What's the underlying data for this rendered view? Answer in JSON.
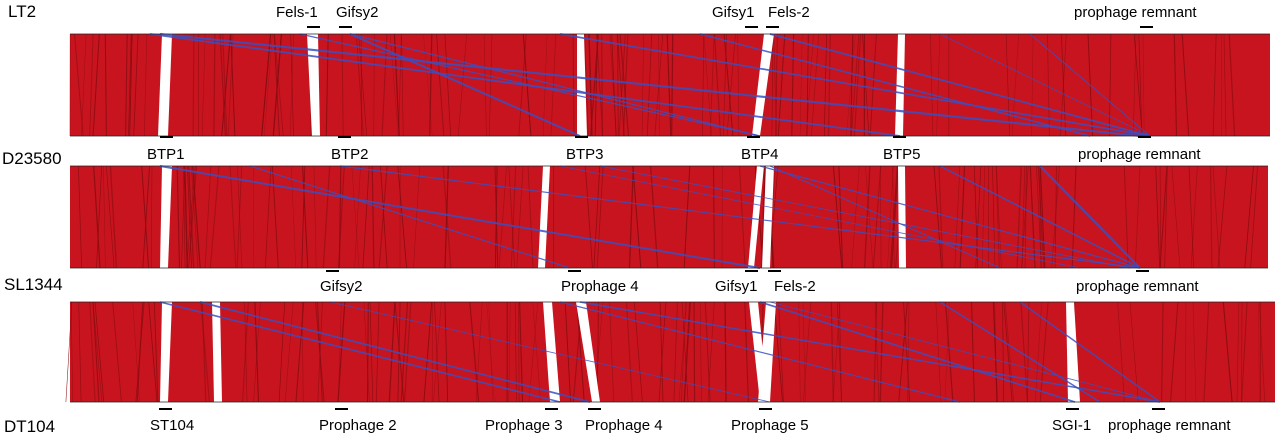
{
  "colors": {
    "match": "#c8141e",
    "match_dark": "#8a0c12",
    "inversion": "#3a4fc2",
    "background": "#ffffff"
  },
  "genomes": [
    {
      "id": "lt2",
      "label": "LT2"
    },
    {
      "id": "d23580",
      "label": "D23580"
    },
    {
      "id": "sl1344",
      "label": "SL1344"
    },
    {
      "id": "dt104",
      "label": "DT104"
    }
  ],
  "features": {
    "lt2": [
      "Fels-1",
      "Gifsy2",
      "Gifsy1",
      "Fels-2",
      "prophage remnant"
    ],
    "d23580": [
      "BTP1",
      "BTP2",
      "BTP3",
      "BTP4",
      "BTP5",
      "prophage remnant"
    ],
    "sl1344": [
      "Gifsy2",
      "Prophage 4",
      "Gifsy1",
      "Fels-2",
      "prophage remnant"
    ],
    "dt104": [
      "ST104",
      "Prophage 2",
      "Prophage 3",
      "Prophage 4",
      "Prophage 5",
      "SGI-1",
      "prophage remnant"
    ]
  }
}
